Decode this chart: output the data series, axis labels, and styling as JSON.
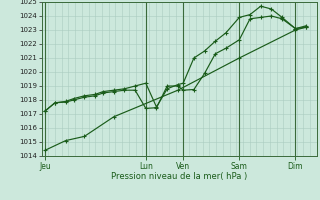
{
  "xlabel": "Pression niveau de la mer( hPa )",
  "ylim": [
    1014,
    1025
  ],
  "yticks": [
    1014,
    1015,
    1016,
    1017,
    1018,
    1019,
    1020,
    1021,
    1022,
    1023,
    1024,
    1025
  ],
  "bg_color": "#cce8dc",
  "grid_color": "#aaccc0",
  "line_color": "#1a5c1a",
  "day_labels": [
    "Jeu",
    "Lun",
    "Ven",
    "Sam",
    "Dim"
  ],
  "day_positions": [
    0.02,
    3.8,
    5.2,
    7.3,
    9.4
  ],
  "vline_positions": [
    0.02,
    3.8,
    5.2,
    7.3,
    9.4
  ],
  "line1_x": [
    0.02,
    0.4,
    0.8,
    1.1,
    1.5,
    1.9,
    2.2,
    2.6,
    3.0,
    3.4,
    3.8,
    4.2,
    4.6,
    5.0,
    5.2,
    5.6,
    6.0,
    6.4,
    6.8,
    7.3,
    7.7,
    8.1,
    8.5,
    8.9,
    9.4,
    9.8
  ],
  "line1_y": [
    1017.2,
    1017.8,
    1017.85,
    1018.0,
    1018.2,
    1018.3,
    1018.5,
    1018.6,
    1018.7,
    1018.7,
    1017.4,
    1017.45,
    1019.0,
    1019.0,
    1018.7,
    1018.75,
    1019.9,
    1021.3,
    1021.7,
    1022.3,
    1023.8,
    1023.9,
    1024.0,
    1023.8,
    1023.1,
    1023.3
  ],
  "line2_x": [
    0.02,
    0.4,
    0.8,
    1.1,
    1.5,
    1.9,
    2.2,
    2.6,
    3.0,
    3.4,
    3.8,
    4.2,
    4.6,
    5.0,
    5.2,
    5.6,
    6.0,
    6.4,
    6.8,
    7.3,
    7.7,
    8.1,
    8.5,
    8.9,
    9.4,
    9.8
  ],
  "line2_y": [
    1017.2,
    1017.8,
    1017.9,
    1018.1,
    1018.3,
    1018.4,
    1018.6,
    1018.7,
    1018.8,
    1019.0,
    1019.2,
    1017.5,
    1018.8,
    1019.1,
    1019.2,
    1021.0,
    1021.5,
    1022.2,
    1022.8,
    1023.9,
    1024.1,
    1024.7,
    1024.5,
    1023.9,
    1023.1,
    1023.2
  ],
  "line3_x": [
    0.02,
    0.8,
    1.5,
    2.6,
    5.0,
    7.3,
    9.4,
    9.8
  ],
  "line3_y": [
    1014.4,
    1015.1,
    1015.4,
    1016.8,
    1018.7,
    1021.0,
    1023.0,
    1023.2
  ],
  "xlim": [
    -0.1,
    10.2
  ]
}
